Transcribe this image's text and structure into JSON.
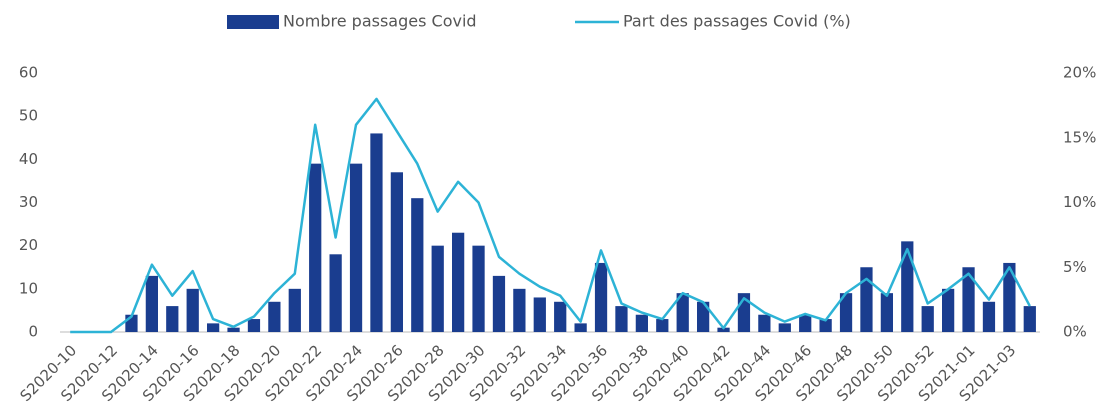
{
  "chart_data": {
    "type": "bar-line",
    "categories": [
      "S2020-10",
      null,
      "S2020-12",
      null,
      "S2020-14",
      null,
      "S2020-16",
      null,
      "S2020-18",
      null,
      "S2020-20",
      null,
      "S2020-22",
      null,
      "S2020-24",
      null,
      "S2020-26",
      null,
      "S2020-28",
      null,
      "S2020-30",
      null,
      "S2020-32",
      null,
      "S2020-34",
      null,
      "S2020-36",
      null,
      "S2020-38",
      null,
      "S2020-40",
      null,
      "S2020-42",
      null,
      "S2020-44",
      null,
      "S2020-46",
      null,
      "S2020-48",
      null,
      "S2020-50",
      null,
      "S2020-52",
      null,
      "S2021-01",
      null,
      "S2021-03",
      null
    ],
    "series": [
      {
        "name": "Nombre passages Covid",
        "type": "bar",
        "color": "#1a3d8f",
        "values": [
          0,
          0,
          0,
          4,
          13,
          6,
          10,
          2,
          1,
          3,
          7,
          10,
          39,
          18,
          39,
          46,
          37,
          31,
          20,
          23,
          20,
          13,
          10,
          8,
          7,
          2,
          16,
          6,
          4,
          3,
          9,
          7,
          1,
          9,
          4,
          2,
          4,
          3,
          9,
          15,
          9,
          21,
          6,
          10,
          15,
          7,
          16,
          6
        ]
      },
      {
        "name": "Part des passages Covid (%)",
        "type": "line",
        "axis": "y2",
        "color": "#2db3d6",
        "values": [
          0,
          0,
          0,
          1.2,
          5.2,
          2.8,
          4.7,
          1.0,
          0.4,
          1.2,
          3.0,
          4.5,
          16,
          7.3,
          16,
          18,
          15.5,
          13,
          9.3,
          11.6,
          10,
          5.8,
          4.5,
          3.5,
          2.8,
          0.8,
          6.3,
          2.2,
          1.5,
          1.0,
          3.0,
          2.3,
          0.3,
          2.6,
          1.5,
          0.8,
          1.4,
          0.9,
          3.0,
          4.1,
          2.8,
          6.4,
          2.2,
          3.3,
          4.5,
          2.5,
          5.0,
          2.0
        ]
      }
    ],
    "ylim": [
      0,
      60
    ],
    "yticks": [
      0,
      10,
      20,
      30,
      40,
      50,
      60
    ],
    "y2lim": [
      0,
      20
    ],
    "y2ticks": [
      {
        "value": 0,
        "label": "0%"
      },
      {
        "value": 5,
        "label": "5%"
      },
      {
        "value": 10,
        "label": "10%"
      },
      {
        "value": 15,
        "label": "15%"
      },
      {
        "value": 20,
        "label": "20%"
      }
    ],
    "grid": false,
    "legend": "top"
  }
}
